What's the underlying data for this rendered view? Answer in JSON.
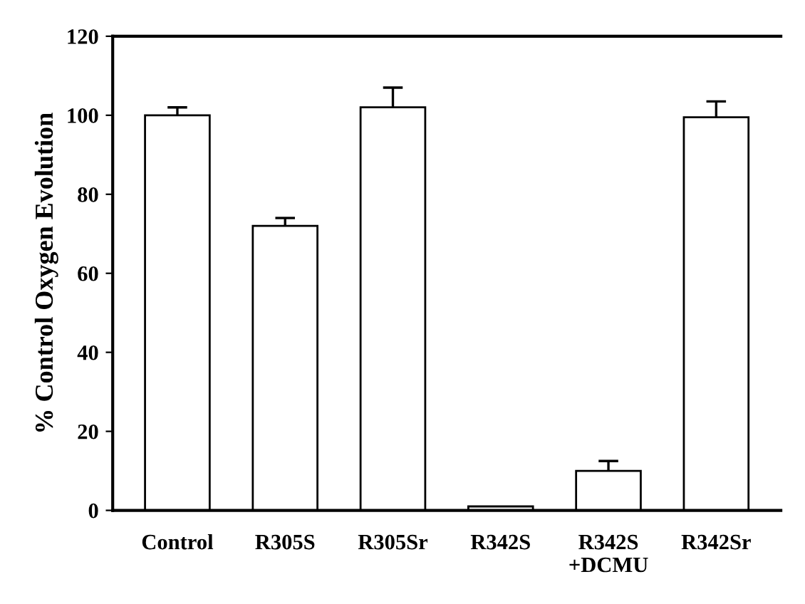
{
  "chart_data": {
    "type": "bar",
    "ylabel": "% Control Oxygen Evolution",
    "categories": [
      "Control",
      "R305S",
      "R305Sr",
      "R342S",
      "R342S\n+DCMU",
      "R342Sr"
    ],
    "values": [
      100,
      72,
      102,
      1,
      10,
      99.5
    ],
    "errors": [
      [
        100,
        102
      ],
      [
        72,
        74
      ],
      [
        102,
        107
      ],
      null,
      [
        10,
        12.5
      ],
      [
        99.5,
        103.5
      ]
    ],
    "color": "#ffffff",
    "ylim": [
      0,
      120
    ],
    "yticks": [
      0,
      20,
      40,
      60,
      80,
      100,
      120
    ],
    "grid": false
  }
}
